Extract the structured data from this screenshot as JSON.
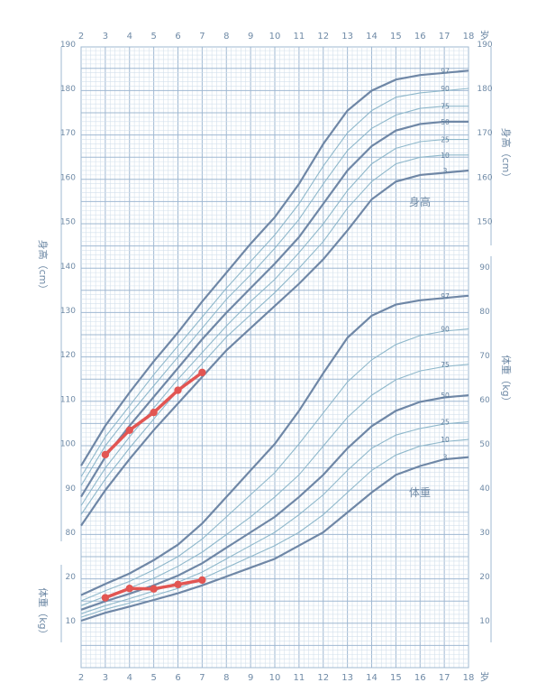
{
  "chart_data": {
    "type": "line",
    "x_ticks": [
      2,
      3,
      4,
      5,
      6,
      7,
      8,
      9,
      10,
      11,
      12,
      13,
      14,
      15,
      16,
      17,
      18
    ],
    "x_unit": "岁",
    "height": {
      "label": "身高",
      "axis_label": "身高（cm）",
      "ylim": [
        76,
        190
      ],
      "left_ticks": [
        80,
        90,
        100,
        110,
        120,
        130,
        140,
        150,
        160,
        170,
        180,
        190
      ],
      "right_ticks": [
        150,
        160,
        170,
        180,
        190
      ],
      "percentiles": [
        {
          "name": "3",
          "x": [
            2,
            3,
            4,
            5,
            6,
            7,
            8,
            9,
            10,
            11,
            12,
            13,
            14,
            15,
            16,
            17,
            18
          ],
          "y": [
            81.5,
            89.5,
            96.5,
            103,
            109,
            115,
            121,
            126,
            131,
            136,
            141.5,
            148,
            155,
            159,
            160.5,
            161,
            161.5
          ]
        },
        {
          "name": "10",
          "x": [
            2,
            3,
            4,
            5,
            6,
            7,
            8,
            9,
            10,
            11,
            12,
            13,
            14,
            15,
            16,
            17,
            18
          ],
          "y": [
            84,
            92,
            99,
            105.5,
            112,
            118,
            124,
            129,
            134,
            139.5,
            145.5,
            153,
            159,
            163,
            164.5,
            165,
            165
          ]
        },
        {
          "name": "25",
          "x": [
            2,
            3,
            4,
            5,
            6,
            7,
            8,
            9,
            10,
            11,
            12,
            13,
            14,
            15,
            16,
            17,
            18
          ],
          "y": [
            86,
            94.5,
            101.5,
            108,
            114.5,
            120.5,
            126.5,
            132,
            137,
            143,
            149.5,
            157,
            163,
            166.5,
            168,
            168.5,
            168.5
          ]
        },
        {
          "name": "50",
          "x": [
            2,
            3,
            4,
            5,
            6,
            7,
            8,
            9,
            10,
            11,
            12,
            13,
            14,
            15,
            16,
            17,
            18
          ],
          "y": [
            88,
            97,
            104,
            110.5,
            117,
            123.5,
            129.5,
            135,
            140.5,
            146.5,
            154,
            161.5,
            167,
            170.5,
            172,
            172.5,
            172.5
          ]
        },
        {
          "name": "75",
          "x": [
            2,
            3,
            4,
            5,
            6,
            7,
            8,
            9,
            10,
            11,
            12,
            13,
            14,
            15,
            16,
            17,
            18
          ],
          "y": [
            90.5,
            99.5,
            106.5,
            113,
            119.5,
            126,
            132.5,
            138,
            144,
            150.5,
            158.5,
            166,
            171,
            174,
            175.5,
            176,
            176
          ]
        },
        {
          "name": "90",
          "x": [
            2,
            3,
            4,
            5,
            6,
            7,
            8,
            9,
            10,
            11,
            12,
            13,
            14,
            15,
            16,
            17,
            18
          ],
          "y": [
            92.5,
            101.5,
            108.5,
            115.5,
            122,
            128.5,
            135,
            141,
            147,
            154,
            162.5,
            170,
            175,
            178,
            179,
            179.5,
            180
          ]
        },
        {
          "name": "97",
          "x": [
            2,
            3,
            4,
            5,
            6,
            7,
            8,
            9,
            10,
            11,
            12,
            13,
            14,
            15,
            16,
            17,
            18
          ],
          "y": [
            95,
            104,
            111.5,
            118.5,
            125,
            132,
            138.5,
            145,
            151,
            158.5,
            167.5,
            175,
            179.5,
            182,
            183,
            183.5,
            184
          ]
        }
      ],
      "child": {
        "x": [
          3,
          4,
          5,
          6,
          7
        ],
        "y": [
          97.5,
          103,
          107,
          112,
          116
        ]
      }
    },
    "weight": {
      "label": "体重",
      "axis_label": "体重（kg）",
      "right_ylim": [
        5,
        95
      ],
      "left_ticks": [
        10,
        20
      ],
      "right_ticks": [
        10,
        20,
        30,
        40,
        50,
        60,
        70,
        80,
        90
      ],
      "percentiles": [
        {
          "name": "3",
          "x": [
            2,
            3,
            4,
            5,
            6,
            7,
            8,
            9,
            10,
            11,
            12,
            13,
            14,
            15,
            16,
            17,
            18
          ],
          "y": [
            10,
            11.8,
            13.2,
            14.7,
            16.2,
            18,
            20,
            22,
            24,
            27,
            30,
            34.5,
            39,
            43,
            45,
            46.5,
            47
          ]
        },
        {
          "name": "10",
          "x": [
            2,
            3,
            4,
            5,
            6,
            7,
            8,
            9,
            10,
            11,
            12,
            13,
            14,
            15,
            16,
            17,
            18
          ],
          "y": [
            10.8,
            12.6,
            14,
            15.7,
            17.3,
            19.5,
            22,
            24.5,
            27,
            30,
            34,
            39,
            44,
            47.5,
            49.5,
            50.5,
            51
          ]
        },
        {
          "name": "25",
          "x": [
            2,
            3,
            4,
            5,
            6,
            7,
            8,
            9,
            10,
            11,
            12,
            13,
            14,
            15,
            16,
            17,
            18
          ],
          "y": [
            11.6,
            13.4,
            15,
            16.7,
            18.7,
            21,
            24,
            27,
            30,
            34,
            38.5,
            44,
            49,
            52,
            53.5,
            54.5,
            55
          ]
        },
        {
          "name": "50",
          "x": [
            2,
            3,
            4,
            5,
            6,
            7,
            8,
            9,
            10,
            11,
            12,
            13,
            14,
            15,
            16,
            17,
            18
          ],
          "y": [
            12.5,
            14.4,
            16.1,
            18,
            20.2,
            23,
            26.5,
            30,
            33.5,
            38,
            43,
            49,
            54,
            57.5,
            59.5,
            60.5,
            61
          ]
        },
        {
          "name": "75",
          "x": [
            2,
            3,
            4,
            5,
            6,
            7,
            8,
            9,
            10,
            11,
            12,
            13,
            14,
            15,
            16,
            17,
            18
          ],
          "y": [
            13.4,
            15.5,
            17.4,
            19.6,
            22.3,
            25.5,
            29.5,
            33.5,
            38,
            43,
            49.5,
            56,
            61,
            64.5,
            66.5,
            67.5,
            68
          ]
        },
        {
          "name": "90",
          "x": [
            2,
            3,
            4,
            5,
            6,
            7,
            8,
            9,
            10,
            11,
            12,
            13,
            14,
            15,
            16,
            17,
            18
          ],
          "y": [
            14.5,
            16.8,
            18.9,
            21.5,
            24.5,
            28.5,
            33.5,
            38.5,
            43.5,
            50,
            57,
            64,
            69,
            72.5,
            74.5,
            75.5,
            76
          ]
        },
        {
          "name": "97",
          "x": [
            2,
            3,
            4,
            5,
            6,
            7,
            8,
            9,
            10,
            11,
            12,
            13,
            14,
            15,
            16,
            17,
            18
          ],
          "y": [
            15.8,
            18.3,
            20.7,
            23.7,
            27.2,
            32,
            38,
            44,
            50,
            57.5,
            66,
            74,
            79,
            81.5,
            82.5,
            83,
            83.5
          ]
        }
      ],
      "child": {
        "x": [
          3,
          4,
          5,
          6,
          7
        ],
        "y": [
          15.2,
          17.3,
          17.2,
          18.2,
          19.2
        ]
      }
    },
    "colors": {
      "grid_major": "#9fb8d2",
      "grid_minor": "#d3e0ec",
      "curve_bold": "#6f87a6",
      "curve_thin": "#8fb8cb",
      "child": "#e25552",
      "tick": "#6f8aa6"
    }
  }
}
